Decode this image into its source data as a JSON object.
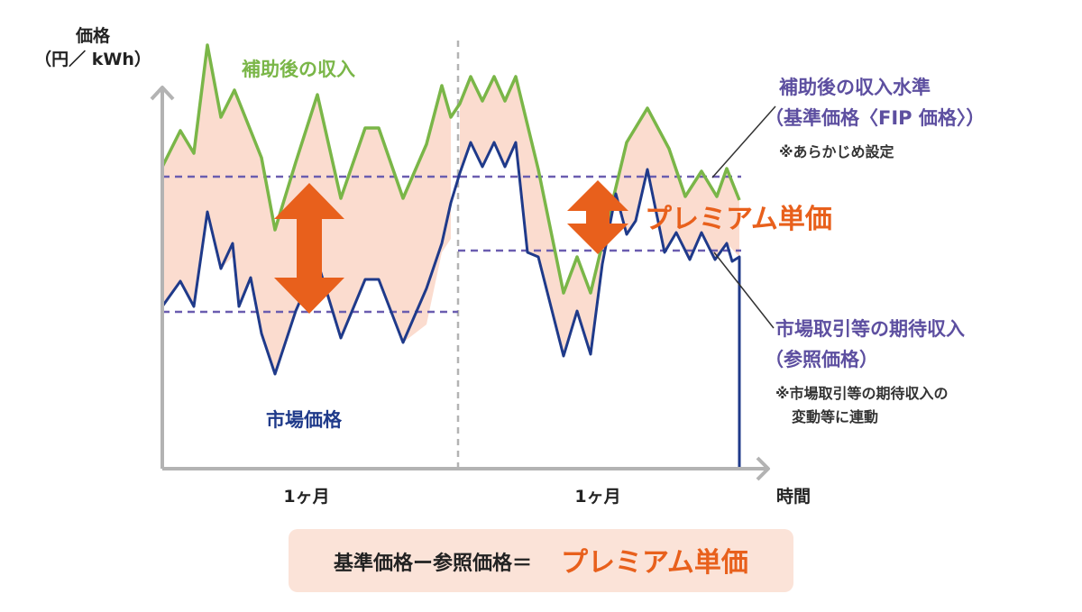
{
  "colors": {
    "axis": "#b3b3b3",
    "supported_line": "#7ab648",
    "market_line": "#1f3a8a",
    "dashed": "#6a5db0",
    "fill": "#fbdccf",
    "premium": "#e8601c",
    "callout_text": "#5d4fa0",
    "formula_bg": "#fbe3d8"
  },
  "axis": {
    "y_title_line1": "価格",
    "y_title_line2": "（円／ kWh）",
    "x_title": "時間",
    "periods": [
      "1ヶ月",
      "1ヶ月"
    ]
  },
  "labels": {
    "supported_revenue": "補助後の収入",
    "market_price": "市場価格",
    "premium": "プレミアム単価"
  },
  "callouts": {
    "base": {
      "line1": "補助後の収入水準",
      "line2": "（基準価格〈FIP 価格〉）",
      "note": "※あらかじめ設定"
    },
    "reference": {
      "line1": "市場取引等の期待収入",
      "line2": "（参照価格）",
      "note_line1": "※市場取引等の期待収入の",
      "note_line2": "変動等に連動"
    }
  },
  "formula": {
    "text": "基準価格ー参照価格＝",
    "premium": "プレミアム単価"
  }
}
